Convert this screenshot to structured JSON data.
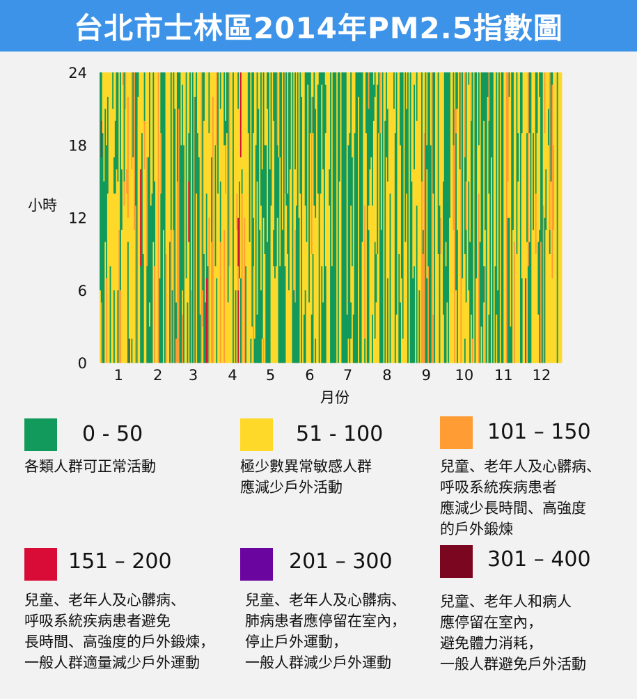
{
  "header": {
    "title": "台北市士林區2014年PM2.5指數圖"
  },
  "chart_data": {
    "type": "heatmap",
    "title": "台北市士林區2014年PM2.5指數圖",
    "xlabel": "月份",
    "ylabel": "小時",
    "x_ticks": [
      "1",
      "2",
      "3",
      "4",
      "5",
      "6",
      "7",
      "8",
      "9",
      "10",
      "11",
      "12"
    ],
    "y_ticks": [
      "0",
      "6",
      "12",
      "18",
      "24"
    ],
    "xlim": [
      1,
      365
    ],
    "ylim": [
      0,
      24
    ],
    "color_by": "daily PM2.5 level per hour",
    "monthly_category_mix": [
      {
        "month": "1",
        "0-50": 0.25,
        "51-100": 0.55,
        "101-150": 0.15,
        "151-200": 0.05
      },
      {
        "month": "2",
        "0-50": 0.35,
        "51-100": 0.52,
        "101-150": 0.1,
        "151-200": 0.03
      },
      {
        "month": "3",
        "0-50": 0.3,
        "51-100": 0.55,
        "101-150": 0.12,
        "151-200": 0.03
      },
      {
        "month": "4",
        "0-50": 0.3,
        "51-100": 0.58,
        "101-150": 0.1,
        "151-200": 0.02
      },
      {
        "month": "5",
        "0-50": 0.45,
        "51-100": 0.5,
        "101-150": 0.05,
        "151-200": 0.0
      },
      {
        "month": "6",
        "0-50": 0.5,
        "51-100": 0.47,
        "101-150": 0.03,
        "151-200": 0.0
      },
      {
        "month": "7",
        "0-50": 0.6,
        "51-100": 0.38,
        "101-150": 0.02,
        "151-200": 0.0
      },
      {
        "month": "8",
        "0-50": 0.5,
        "51-100": 0.47,
        "101-150": 0.03,
        "151-200": 0.0
      },
      {
        "month": "9",
        "0-50": 0.45,
        "51-100": 0.5,
        "101-150": 0.05,
        "151-200": 0.0
      },
      {
        "month": "10",
        "0-50": 0.35,
        "51-100": 0.55,
        "101-150": 0.1,
        "151-200": 0.0
      },
      {
        "month": "11",
        "0-50": 0.4,
        "51-100": 0.52,
        "101-150": 0.08,
        "151-200": 0.0
      },
      {
        "month": "12",
        "0-50": 0.3,
        "51-100": 0.55,
        "101-150": 0.13,
        "151-200": 0.02
      }
    ],
    "legend_placement": "bottom",
    "grid": false
  },
  "legend": [
    {
      "range": "0 - 50",
      "color": "#119a5b",
      "lines": [
        "各類人群可正常活動"
      ]
    },
    {
      "range": "51 - 100",
      "color": "#fed92a",
      "lines": [
        "極少數異常敏感人群",
        "應減少戶外活動"
      ]
    },
    {
      "range": "101 – 150",
      "color": "#ff9c33",
      "lines": [
        "兒童、老年人及心髒病、",
        "呼吸系統疾病患者",
        "應減少長時間、高強度",
        "的戶外鍛煉"
      ]
    },
    {
      "range": "151 – 200",
      "color": "#d80c36",
      "lines": [
        "兒童、老年人及心髒病、",
        "呼吸系統疾病患者避免",
        "長時間、高強度的戶外鍛煉，",
        "一般人群適量減少戶外運動"
      ]
    },
    {
      "range": "201 – 300",
      "color": "#6a05a0",
      "lines": [
        "兒童、老年人及心髒病、",
        "肺病患者應停留在室內，",
        "停止戶外運動，",
        "一般人群減少戶外運動"
      ]
    },
    {
      "range": "301 – 400",
      "color": "#7b0620",
      "lines": [
        "兒童、老年人和病人",
        "應停留在室內，",
        "避免體力消耗，",
        "一般人群避免戶外活動"
      ]
    }
  ]
}
